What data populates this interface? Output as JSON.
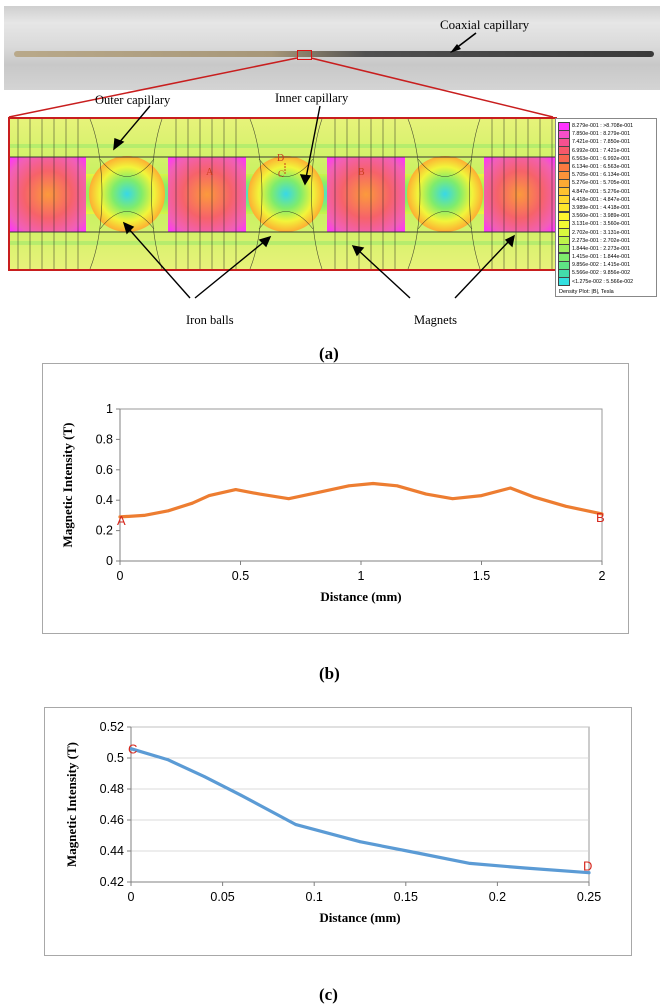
{
  "panel_a": {
    "label": "(a)",
    "photo_label": "Coaxial capillary",
    "outer_capillary_label": "Outer capillary",
    "inner_capillary_label": "Inner capillary",
    "iron_balls_label": "Iron balls",
    "magnets_label": "Magnets",
    "point_labels": {
      "a": "A",
      "b": "B",
      "c": "C",
      "d": "D"
    },
    "legend": {
      "entries": [
        {
          "range": "8.279e-001 : >8.708e-001",
          "color": "#ff33ff"
        },
        {
          "range": "7.850e-001 : 8.279e-001",
          "color": "#f54fc8"
        },
        {
          "range": "7.421e-001 : 7.850e-001",
          "color": "#f5508f"
        },
        {
          "range": "6.992e-001 : 7.421e-001",
          "color": "#f7586a"
        },
        {
          "range": "6.563e-001 : 6.992e-001",
          "color": "#f8654f"
        },
        {
          "range": "6.134e-001 : 6.563e-001",
          "color": "#fa7a40"
        },
        {
          "range": "5.705e-001 : 6.134e-001",
          "color": "#fb9239"
        },
        {
          "range": "5.276e-001 : 5.705e-001",
          "color": "#fcaa33"
        },
        {
          "range": "4.847e-001 : 5.276e-001",
          "color": "#fdc22f"
        },
        {
          "range": "4.418e-001 : 4.847e-001",
          "color": "#fed82d"
        },
        {
          "range": "3.989e-001 : 4.418e-001",
          "color": "#fee72c"
        },
        {
          "range": "3.560e-001 : 3.989e-001",
          "color": "#fef52e"
        },
        {
          "range": "3.131e-001 : 3.560e-001",
          "color": "#f2fb33"
        },
        {
          "range": "2.702e-001 : 3.131e-001",
          "color": "#d9f93d"
        },
        {
          "range": "2.273e-001 : 2.702e-001",
          "color": "#bdf54a"
        },
        {
          "range": "1.844e-001 : 2.273e-001",
          "color": "#9ef05a"
        },
        {
          "range": "1.415e-001 : 1.844e-001",
          "color": "#7deb6d"
        },
        {
          "range": "9.856e-002 : 1.415e-001",
          "color": "#5ee585"
        },
        {
          "range": "5.566e-002 : 9.856e-002",
          "color": "#43ddab"
        },
        {
          "range": "<1.275e-002 : 5.566e-002",
          "color": "#33e0e0"
        }
      ],
      "footer": "Density Plot: |B|, Tesla"
    }
  },
  "panel_b": {
    "label": "(b)",
    "chart_data": {
      "type": "line",
      "title": "",
      "xlabel": "Distance (mm)",
      "ylabel": "Magnetic Intensity (T)",
      "xlim": [
        0,
        2
      ],
      "ylim": [
        0,
        1
      ],
      "xticks": [
        "0",
        "0.5",
        "1",
        "1.5",
        "2"
      ],
      "yticks": [
        "0",
        "0.2",
        "0.4",
        "0.6",
        "0.8",
        "1"
      ],
      "series": [
        {
          "name": "A-B",
          "color": "#ed7d31",
          "x": [
            0,
            0.1,
            0.2,
            0.3,
            0.37,
            0.48,
            0.58,
            0.7,
            0.82,
            0.95,
            1.05,
            1.15,
            1.27,
            1.38,
            1.5,
            1.62,
            1.72,
            1.85,
            2.0
          ],
          "y": [
            0.29,
            0.3,
            0.33,
            0.38,
            0.43,
            0.47,
            0.44,
            0.41,
            0.45,
            0.495,
            0.51,
            0.495,
            0.44,
            0.41,
            0.43,
            0.48,
            0.42,
            0.36,
            0.31
          ]
        }
      ],
      "annotations": [
        "A",
        "B"
      ]
    }
  },
  "panel_c": {
    "label": "(c)",
    "chart_data": {
      "type": "line",
      "title": "",
      "xlabel": "Distance (mm)",
      "ylabel": "Magnetic Intensity (T)",
      "xlim": [
        0,
        0.25
      ],
      "ylim": [
        0.42,
        0.52
      ],
      "xticks": [
        "0",
        "0.05",
        "0.1",
        "0.15",
        "0.2",
        "0.25"
      ],
      "yticks": [
        "0.42",
        "0.44",
        "0.46",
        "0.48",
        "0.5",
        "0.52"
      ],
      "series": [
        {
          "name": "C-D",
          "color": "#5b9bd5",
          "x": [
            0,
            0.02,
            0.04,
            0.06,
            0.09,
            0.125,
            0.155,
            0.185,
            0.215,
            0.25
          ],
          "y": [
            0.506,
            0.499,
            0.488,
            0.476,
            0.457,
            0.446,
            0.439,
            0.432,
            0.429,
            0.426
          ]
        }
      ],
      "annotations": [
        "C",
        "D"
      ]
    }
  }
}
